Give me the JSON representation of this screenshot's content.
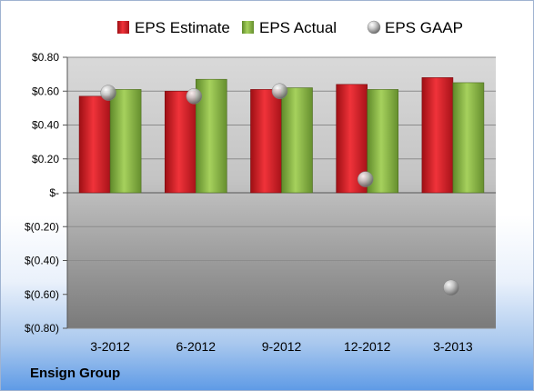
{
  "company": "Ensign Group",
  "chart_data": {
    "type": "bar",
    "categories": [
      "3-2012",
      "6-2012",
      "9-2012",
      "12-2012",
      "3-2013"
    ],
    "series": [
      {
        "name": "EPS Estimate",
        "kind": "bar",
        "color": "#e0242b",
        "values": [
          0.57,
          0.6,
          0.61,
          0.64,
          0.68
        ]
      },
      {
        "name": "EPS Actual",
        "kind": "bar",
        "color": "#8fc04a",
        "values": [
          0.61,
          0.67,
          0.62,
          0.61,
          0.65
        ]
      },
      {
        "name": "EPS GAAP",
        "kind": "marker",
        "color": "#b8b8b8",
        "values": [
          0.59,
          0.57,
          0.6,
          0.08,
          -0.56
        ]
      }
    ],
    "ylim": [
      -0.8,
      0.8
    ],
    "yticks": [
      0.8,
      0.6,
      0.4,
      0.2,
      0,
      -0.2,
      -0.4,
      -0.6,
      -0.8
    ],
    "ytick_labels": [
      "$0.80",
      "$0.60",
      "$0.40",
      "$0.20",
      "$-",
      "$(0.20)",
      "$(0.40)",
      "$(0.60)",
      "$(0.80)"
    ],
    "legend_position": "top",
    "grid": true
  }
}
